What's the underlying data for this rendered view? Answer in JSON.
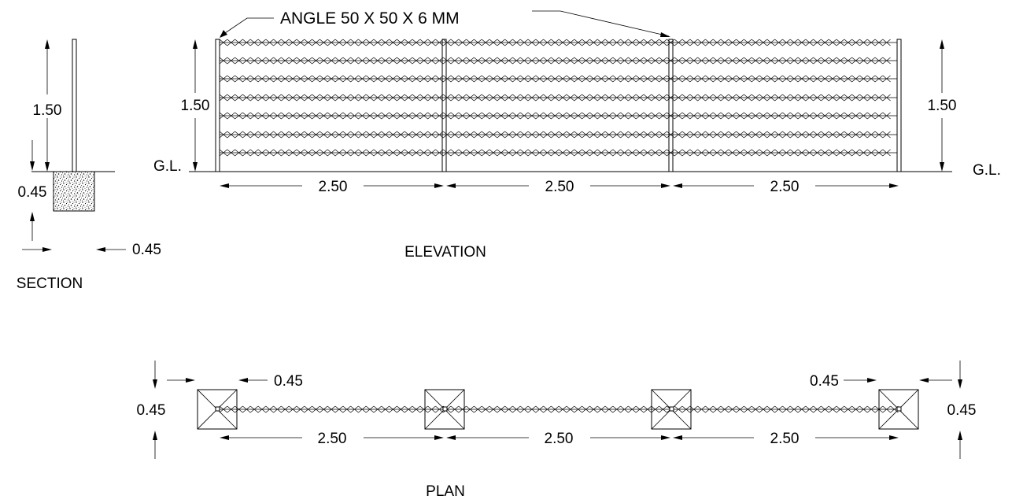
{
  "section": {
    "title": "SECTION",
    "height_label": "1.50",
    "depth_label": "0.45",
    "width_label": "0.45",
    "ground_label": "G.L."
  },
  "elevation": {
    "title": "ELEVATION",
    "callout": "ANGLE 50 X 50 X 6 MM",
    "left_height_label": "1.50",
    "right_height_label": "1.50",
    "ground_label_left": "G.L.",
    "ground_label_right": "G.L.",
    "bay_labels": [
      "2.50",
      "2.50",
      "2.50"
    ]
  },
  "plan": {
    "title": "PLAN",
    "left_width_label": "0.45",
    "left_depth_label": "0.45",
    "right_width_label": "0.45",
    "right_depth_label": "0.45",
    "bay_labels": [
      "2.50",
      "2.50",
      "2.50"
    ]
  },
  "colors": {
    "line": "#000000",
    "background": "#ffffff"
  }
}
